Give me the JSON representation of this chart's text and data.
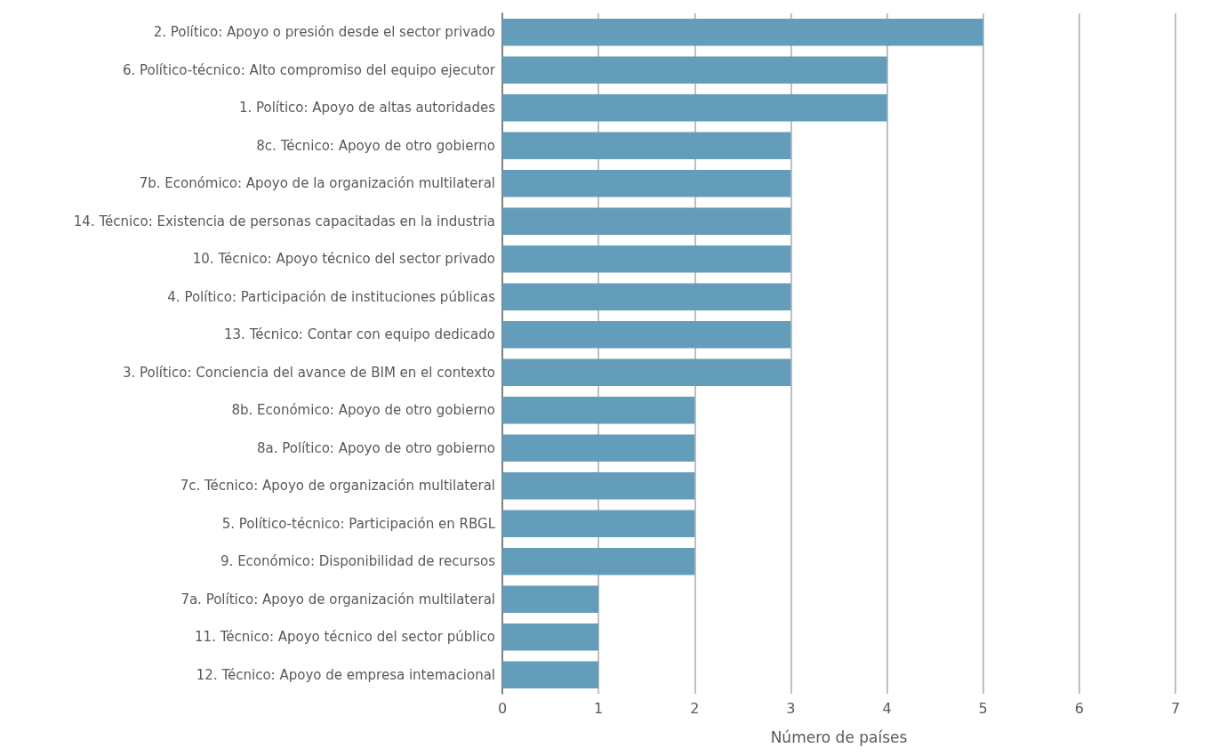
{
  "chart_data": {
    "type": "bar",
    "orientation": "horizontal",
    "xlabel": "Número de países",
    "categories": [
      "2. Político: Apoyo o presión desde el sector privado",
      "6. Político-técnico: Alto compromiso del equipo ejecutor",
      "1. Político: Apoyo de altas autoridades",
      "8c. Técnico: Apoyo de otro gobierno",
      "7b. Económico: Apoyo de la organización multilateral",
      "14. Técnico: Existencia de personas capacitadas en la industria",
      "10. Técnico: Apoyo técnico del sector privado",
      "4. Político: Participación de instituciones públicas",
      "13. Técnico: Contar con equipo dedicado",
      "3. Político: Conciencia del avance de BIM en el contexto",
      "8b. Económico: Apoyo de otro gobierno",
      "8a. Político: Apoyo de otro gobierno",
      "7c. Técnico: Apoyo de organización multilateral",
      "5. Político-técnico: Participación en RBGL",
      "9. Económico: Disponibilidad de recursos",
      "7a. Político: Apoyo de organización multilateral",
      "11. Técnico: Apoyo técnico del sector público",
      "12. Técnico: Apoyo de empresa intemacional"
    ],
    "values": [
      5,
      4,
      4,
      3,
      3,
      3,
      3,
      3,
      3,
      3,
      2,
      2,
      2,
      2,
      2,
      1,
      1,
      1
    ],
    "color": "#639dba",
    "xlim": [
      0,
      7
    ],
    "xticks": [
      0,
      1,
      2,
      3,
      4,
      5,
      6,
      7
    ],
    "grid": "x"
  }
}
